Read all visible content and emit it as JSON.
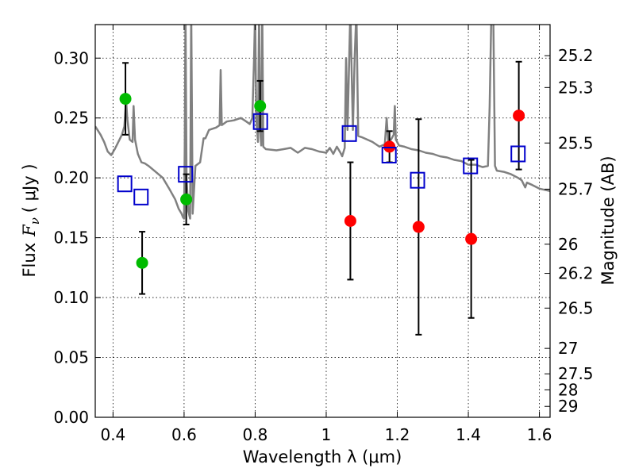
{
  "chart_data": {
    "type": "scatter",
    "xlabel": "Wavelength  λ (μm)",
    "ylabel_prefix": "Flux",
    "ylabel_symbol": "F",
    "ylabel_subscript": "ν",
    "ylabel_unit": "( μJy )",
    "y2label": "Magnitude (AB)",
    "xlim": [
      0.35,
      1.63
    ],
    "ylim": [
      0.0,
      0.328
    ],
    "grid": true,
    "xticks": [
      {
        "value": 0.4,
        "label": "0.4"
      },
      {
        "value": 0.6,
        "label": "0.6"
      },
      {
        "value": 0.8,
        "label": "0.8"
      },
      {
        "value": 1.0,
        "label": "1"
      },
      {
        "value": 1.2,
        "label": "1.2"
      },
      {
        "value": 1.4,
        "label": "1.4"
      },
      {
        "value": 1.6,
        "label": "1.6"
      }
    ],
    "yticks": [
      {
        "value": 0.0,
        "label": "0.00"
      },
      {
        "value": 0.05,
        "label": "0.05"
      },
      {
        "value": 0.1,
        "label": "0.10"
      },
      {
        "value": 0.15,
        "label": "0.15"
      },
      {
        "value": 0.2,
        "label": "0.20"
      },
      {
        "value": 0.25,
        "label": "0.25"
      },
      {
        "value": 0.3,
        "label": "0.30"
      }
    ],
    "magnitude_ticks": [
      {
        "value": 25.2,
        "label": "25.2"
      },
      {
        "value": 25.3,
        "label": "25.3"
      },
      {
        "value": 25.5,
        "label": "25.5"
      },
      {
        "value": 25.7,
        "label": "25.7"
      },
      {
        "value": 26.0,
        "label": "26"
      },
      {
        "value": 26.2,
        "label": "26.2"
      },
      {
        "value": 26.5,
        "label": "26.5"
      },
      {
        "value": 27.0,
        "label": "27"
      },
      {
        "value": 27.5,
        "label": "27.5"
      },
      {
        "value": 28.0,
        "label": "28"
      },
      {
        "value": 29.0,
        "label": "29"
      }
    ],
    "series": [
      {
        "name": "green-points",
        "marker": "filled-circle",
        "color": "#00bb00",
        "points": [
          {
            "x": 0.435,
            "y": 0.266,
            "err": 0.03
          },
          {
            "x": 0.482,
            "y": 0.129,
            "err": 0.026
          },
          {
            "x": 0.606,
            "y": 0.182,
            "err": 0.021
          },
          {
            "x": 0.814,
            "y": 0.26,
            "err": 0.021
          }
        ]
      },
      {
        "name": "red-points",
        "marker": "filled-circle",
        "color": "#ff0000",
        "points": [
          {
            "x": 1.068,
            "y": 0.164,
            "err": 0.049
          },
          {
            "x": 1.178,
            "y": 0.226,
            "err": 0.013
          },
          {
            "x": 1.26,
            "y": 0.159,
            "err": 0.09
          },
          {
            "x": 1.408,
            "y": 0.149,
            "err": 0.066
          },
          {
            "x": 1.542,
            "y": 0.252,
            "err": 0.045
          }
        ]
      },
      {
        "name": "model-squares",
        "marker": "open-square",
        "color": "#0000cc",
        "points": [
          {
            "x": 0.433,
            "y": 0.195
          },
          {
            "x": 0.479,
            "y": 0.184
          },
          {
            "x": 0.604,
            "y": 0.203
          },
          {
            "x": 0.815,
            "y": 0.247
          },
          {
            "x": 1.065,
            "y": 0.237
          },
          {
            "x": 1.177,
            "y": 0.219
          },
          {
            "x": 1.257,
            "y": 0.198
          },
          {
            "x": 1.406,
            "y": 0.21
          },
          {
            "x": 1.54,
            "y": 0.22
          }
        ]
      },
      {
        "name": "sed-model",
        "type": "line",
        "color": "#808080",
        "points": [
          [
            0.35,
            0.243
          ],
          [
            0.365,
            0.236
          ],
          [
            0.375,
            0.23
          ],
          [
            0.385,
            0.222
          ],
          [
            0.395,
            0.219
          ],
          [
            0.405,
            0.224
          ],
          [
            0.415,
            0.23
          ],
          [
            0.425,
            0.236
          ],
          [
            0.432,
            0.243
          ],
          [
            0.437,
            0.265
          ],
          [
            0.44,
            0.25
          ],
          [
            0.447,
            0.232
          ],
          [
            0.455,
            0.23
          ],
          [
            0.458,
            0.26
          ],
          [
            0.462,
            0.232
          ],
          [
            0.47,
            0.22
          ],
          [
            0.48,
            0.213
          ],
          [
            0.49,
            0.212
          ],
          [
            0.5,
            0.21
          ],
          [
            0.52,
            0.205
          ],
          [
            0.54,
            0.2
          ],
          [
            0.56,
            0.19
          ],
          [
            0.575,
            0.182
          ],
          [
            0.585,
            0.174
          ],
          [
            0.593,
            0.17
          ],
          [
            0.597,
            0.167
          ],
          [
            0.6,
            0.166
          ],
          [
            0.602,
            0.23
          ],
          [
            0.604,
            0.34
          ],
          [
            0.607,
            0.2
          ],
          [
            0.612,
            0.172
          ],
          [
            0.617,
            0.166
          ],
          [
            0.62,
            0.34
          ],
          [
            0.624,
            0.17
          ],
          [
            0.632,
            0.21
          ],
          [
            0.645,
            0.213
          ],
          [
            0.655,
            0.233
          ],
          [
            0.66,
            0.233
          ],
          [
            0.67,
            0.24
          ],
          [
            0.68,
            0.241
          ],
          [
            0.69,
            0.242
          ],
          [
            0.7,
            0.244
          ],
          [
            0.703,
            0.29
          ],
          [
            0.706,
            0.244
          ],
          [
            0.72,
            0.247
          ],
          [
            0.74,
            0.248
          ],
          [
            0.76,
            0.25
          ],
          [
            0.775,
            0.247
          ],
          [
            0.785,
            0.245
          ],
          [
            0.792,
            0.25
          ],
          [
            0.797,
            0.3
          ],
          [
            0.8,
            0.34
          ],
          [
            0.803,
            0.25
          ],
          [
            0.808,
            0.23
          ],
          [
            0.811,
            0.34
          ],
          [
            0.814,
            0.24
          ],
          [
            0.817,
            0.227
          ],
          [
            0.82,
            0.34
          ],
          [
            0.823,
            0.226
          ],
          [
            0.83,
            0.224
          ],
          [
            0.86,
            0.223
          ],
          [
            0.88,
            0.224
          ],
          [
            0.9,
            0.225
          ],
          [
            0.92,
            0.221
          ],
          [
            0.94,
            0.225
          ],
          [
            0.96,
            0.224
          ],
          [
            0.98,
            0.222
          ],
          [
            1.0,
            0.221
          ],
          [
            1.01,
            0.225
          ],
          [
            1.02,
            0.22
          ],
          [
            1.03,
            0.226
          ],
          [
            1.04,
            0.221
          ],
          [
            1.045,
            0.218
          ],
          [
            1.052,
            0.225
          ],
          [
            1.056,
            0.3
          ],
          [
            1.06,
            0.24
          ],
          [
            1.068,
            0.34
          ],
          [
            1.075,
            0.24
          ],
          [
            1.08,
            0.3
          ],
          [
            1.085,
            0.34
          ],
          [
            1.09,
            0.235
          ],
          [
            1.1,
            0.234
          ],
          [
            1.115,
            0.232
          ],
          [
            1.13,
            0.23
          ],
          [
            1.15,
            0.226
          ],
          [
            1.165,
            0.228
          ],
          [
            1.17,
            0.25
          ],
          [
            1.175,
            0.228
          ],
          [
            1.19,
            0.236
          ],
          [
            1.193,
            0.26
          ],
          [
            1.196,
            0.232
          ],
          [
            1.205,
            0.227
          ],
          [
            1.22,
            0.226
          ],
          [
            1.24,
            0.224
          ],
          [
            1.26,
            0.223
          ],
          [
            1.28,
            0.221
          ],
          [
            1.3,
            0.22
          ],
          [
            1.32,
            0.218
          ],
          [
            1.34,
            0.217
          ],
          [
            1.36,
            0.215
          ],
          [
            1.38,
            0.214
          ],
          [
            1.4,
            0.211
          ],
          [
            1.42,
            0.211
          ],
          [
            1.44,
            0.209
          ],
          [
            1.455,
            0.21
          ],
          [
            1.46,
            0.26
          ],
          [
            1.465,
            0.34
          ],
          [
            1.47,
            0.34
          ],
          [
            1.475,
            0.21
          ],
          [
            1.48,
            0.206
          ],
          [
            1.5,
            0.205
          ],
          [
            1.52,
            0.203
          ],
          [
            1.54,
            0.2
          ],
          [
            1.55,
            0.198
          ],
          [
            1.56,
            0.192
          ],
          [
            1.565,
            0.196
          ],
          [
            1.58,
            0.194
          ],
          [
            1.6,
            0.191
          ],
          [
            1.615,
            0.19
          ],
          [
            1.63,
            0.189
          ]
        ]
      }
    ]
  },
  "colors": {
    "background": "#ffffff",
    "axes": "#000000",
    "sed_line": "#808080",
    "error_bar": "#000000"
  }
}
